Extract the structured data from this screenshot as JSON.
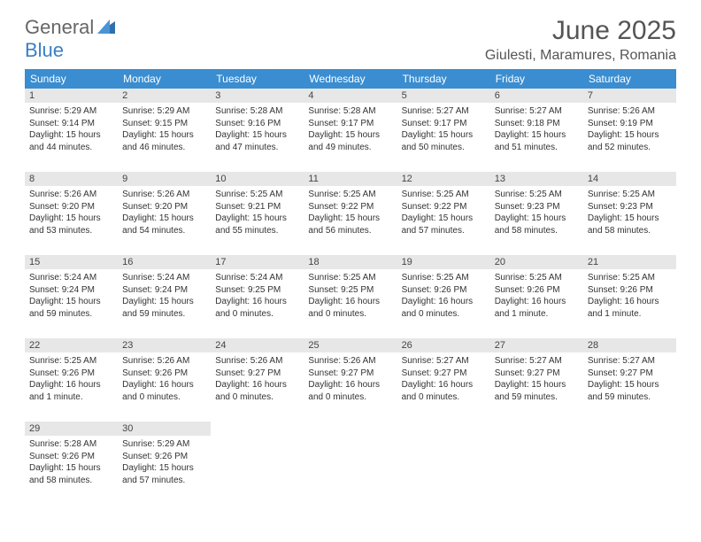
{
  "logo": {
    "line1": "General",
    "line2": "Blue"
  },
  "title": "June 2025",
  "location": "Giulesti, Maramures, Romania",
  "colors": {
    "header_bg": "#3a8dd0",
    "header_text": "#ffffff",
    "daynum_bg": "#e7e7e7",
    "row_border": "#3a8dd0",
    "text": "#333333",
    "logo_blue": "#3a7fc4"
  },
  "weekdays": [
    "Sunday",
    "Monday",
    "Tuesday",
    "Wednesday",
    "Thursday",
    "Friday",
    "Saturday"
  ],
  "weeks": [
    [
      {
        "day": "1",
        "sunrise": "Sunrise: 5:29 AM",
        "sunset": "Sunset: 9:14 PM",
        "daylight": "Daylight: 15 hours and 44 minutes."
      },
      {
        "day": "2",
        "sunrise": "Sunrise: 5:29 AM",
        "sunset": "Sunset: 9:15 PM",
        "daylight": "Daylight: 15 hours and 46 minutes."
      },
      {
        "day": "3",
        "sunrise": "Sunrise: 5:28 AM",
        "sunset": "Sunset: 9:16 PM",
        "daylight": "Daylight: 15 hours and 47 minutes."
      },
      {
        "day": "4",
        "sunrise": "Sunrise: 5:28 AM",
        "sunset": "Sunset: 9:17 PM",
        "daylight": "Daylight: 15 hours and 49 minutes."
      },
      {
        "day": "5",
        "sunrise": "Sunrise: 5:27 AM",
        "sunset": "Sunset: 9:17 PM",
        "daylight": "Daylight: 15 hours and 50 minutes."
      },
      {
        "day": "6",
        "sunrise": "Sunrise: 5:27 AM",
        "sunset": "Sunset: 9:18 PM",
        "daylight": "Daylight: 15 hours and 51 minutes."
      },
      {
        "day": "7",
        "sunrise": "Sunrise: 5:26 AM",
        "sunset": "Sunset: 9:19 PM",
        "daylight": "Daylight: 15 hours and 52 minutes."
      }
    ],
    [
      {
        "day": "8",
        "sunrise": "Sunrise: 5:26 AM",
        "sunset": "Sunset: 9:20 PM",
        "daylight": "Daylight: 15 hours and 53 minutes."
      },
      {
        "day": "9",
        "sunrise": "Sunrise: 5:26 AM",
        "sunset": "Sunset: 9:20 PM",
        "daylight": "Daylight: 15 hours and 54 minutes."
      },
      {
        "day": "10",
        "sunrise": "Sunrise: 5:25 AM",
        "sunset": "Sunset: 9:21 PM",
        "daylight": "Daylight: 15 hours and 55 minutes."
      },
      {
        "day": "11",
        "sunrise": "Sunrise: 5:25 AM",
        "sunset": "Sunset: 9:22 PM",
        "daylight": "Daylight: 15 hours and 56 minutes."
      },
      {
        "day": "12",
        "sunrise": "Sunrise: 5:25 AM",
        "sunset": "Sunset: 9:22 PM",
        "daylight": "Daylight: 15 hours and 57 minutes."
      },
      {
        "day": "13",
        "sunrise": "Sunrise: 5:25 AM",
        "sunset": "Sunset: 9:23 PM",
        "daylight": "Daylight: 15 hours and 58 minutes."
      },
      {
        "day": "14",
        "sunrise": "Sunrise: 5:25 AM",
        "sunset": "Sunset: 9:23 PM",
        "daylight": "Daylight: 15 hours and 58 minutes."
      }
    ],
    [
      {
        "day": "15",
        "sunrise": "Sunrise: 5:24 AM",
        "sunset": "Sunset: 9:24 PM",
        "daylight": "Daylight: 15 hours and 59 minutes."
      },
      {
        "day": "16",
        "sunrise": "Sunrise: 5:24 AM",
        "sunset": "Sunset: 9:24 PM",
        "daylight": "Daylight: 15 hours and 59 minutes."
      },
      {
        "day": "17",
        "sunrise": "Sunrise: 5:24 AM",
        "sunset": "Sunset: 9:25 PM",
        "daylight": "Daylight: 16 hours and 0 minutes."
      },
      {
        "day": "18",
        "sunrise": "Sunrise: 5:25 AM",
        "sunset": "Sunset: 9:25 PM",
        "daylight": "Daylight: 16 hours and 0 minutes."
      },
      {
        "day": "19",
        "sunrise": "Sunrise: 5:25 AM",
        "sunset": "Sunset: 9:26 PM",
        "daylight": "Daylight: 16 hours and 0 minutes."
      },
      {
        "day": "20",
        "sunrise": "Sunrise: 5:25 AM",
        "sunset": "Sunset: 9:26 PM",
        "daylight": "Daylight: 16 hours and 1 minute."
      },
      {
        "day": "21",
        "sunrise": "Sunrise: 5:25 AM",
        "sunset": "Sunset: 9:26 PM",
        "daylight": "Daylight: 16 hours and 1 minute."
      }
    ],
    [
      {
        "day": "22",
        "sunrise": "Sunrise: 5:25 AM",
        "sunset": "Sunset: 9:26 PM",
        "daylight": "Daylight: 16 hours and 1 minute."
      },
      {
        "day": "23",
        "sunrise": "Sunrise: 5:26 AM",
        "sunset": "Sunset: 9:26 PM",
        "daylight": "Daylight: 16 hours and 0 minutes."
      },
      {
        "day": "24",
        "sunrise": "Sunrise: 5:26 AM",
        "sunset": "Sunset: 9:27 PM",
        "daylight": "Daylight: 16 hours and 0 minutes."
      },
      {
        "day": "25",
        "sunrise": "Sunrise: 5:26 AM",
        "sunset": "Sunset: 9:27 PM",
        "daylight": "Daylight: 16 hours and 0 minutes."
      },
      {
        "day": "26",
        "sunrise": "Sunrise: 5:27 AM",
        "sunset": "Sunset: 9:27 PM",
        "daylight": "Daylight: 16 hours and 0 minutes."
      },
      {
        "day": "27",
        "sunrise": "Sunrise: 5:27 AM",
        "sunset": "Sunset: 9:27 PM",
        "daylight": "Daylight: 15 hours and 59 minutes."
      },
      {
        "day": "28",
        "sunrise": "Sunrise: 5:27 AM",
        "sunset": "Sunset: 9:27 PM",
        "daylight": "Daylight: 15 hours and 59 minutes."
      }
    ],
    [
      {
        "day": "29",
        "sunrise": "Sunrise: 5:28 AM",
        "sunset": "Sunset: 9:26 PM",
        "daylight": "Daylight: 15 hours and 58 minutes."
      },
      {
        "day": "30",
        "sunrise": "Sunrise: 5:29 AM",
        "sunset": "Sunset: 9:26 PM",
        "daylight": "Daylight: 15 hours and 57 minutes."
      },
      null,
      null,
      null,
      null,
      null
    ]
  ]
}
